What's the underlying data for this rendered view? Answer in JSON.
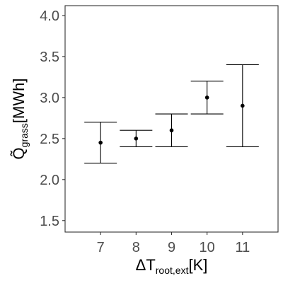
{
  "chart_data": {
    "type": "scatter",
    "title": "",
    "xlabel": {
      "prefix": "ΔT",
      "subscript": "root,ext",
      "suffix": "[K]"
    },
    "ylabel": {
      "prefix": "Q̃",
      "subscript": "grass",
      "suffix": "[MWh]"
    },
    "x": [
      7,
      8,
      9,
      10,
      11
    ],
    "y": [
      2.45,
      2.5,
      2.6,
      3.0,
      2.9
    ],
    "error_low": [
      2.2,
      2.4,
      2.4,
      2.8,
      2.4
    ],
    "error_high": [
      2.7,
      2.6,
      2.8,
      3.2,
      3.4
    ],
    "xlim": [
      6,
      12
    ],
    "ylim": [
      1.36,
      4.12
    ],
    "xticks": [
      "7",
      "8",
      "9",
      "10",
      "11"
    ],
    "yticks": [
      "1.5",
      "2.0",
      "2.5",
      "3.0",
      "3.5",
      "4.0"
    ],
    "grid": false,
    "legend": "none",
    "colors": {
      "point": "#000000",
      "errorbar": "#000000",
      "axis_text": "#4d4d4d",
      "frame": "#333333"
    }
  }
}
